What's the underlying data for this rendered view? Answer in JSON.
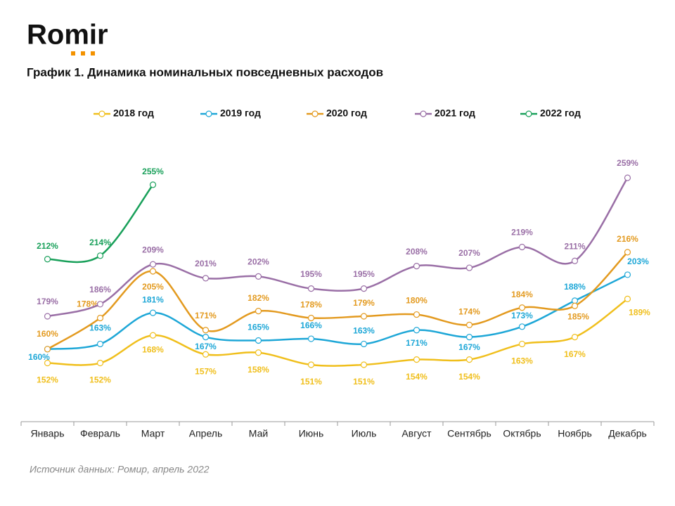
{
  "logo": "Romir",
  "chart_data": {
    "type": "line",
    "title": "График 1. Динамика номинальных повседневных расходов",
    "source": "Источник данных: Ромир, апрель 2022",
    "categories": [
      "Январь",
      "Февраль",
      "Март",
      "Апрель",
      "Май",
      "Июнь",
      "Июль",
      "Август",
      "Сентябрь",
      "Октябрь",
      "Ноябрь",
      "Декабрь"
    ],
    "series": [
      {
        "name": "2018 год",
        "color": "#f0bf1c",
        "values": [
          152,
          152,
          168,
          157,
          158,
          151,
          151,
          154,
          154,
          163,
          167,
          189
        ],
        "value_labels": [
          "152%",
          "152%",
          "168%",
          "157%",
          "158%",
          "151%",
          "151%",
          "154%",
          "154%",
          "163%",
          "167%",
          "189%"
        ]
      },
      {
        "name": "2019 год",
        "color": "#1ea7d7",
        "values": [
          160,
          163,
          181,
          167,
          165,
          166,
          163,
          171,
          167,
          173,
          188,
          203
        ],
        "value_labels": [
          "160%",
          "163%",
          "181%",
          "167%",
          "165%",
          "166%",
          "163%",
          "171%",
          "167%",
          "173%",
          "188%",
          "203%"
        ]
      },
      {
        "name": "2020 год",
        "color": "#e39a1f",
        "values": [
          160,
          178,
          205,
          171,
          182,
          178,
          179,
          180,
          174,
          184,
          185,
          216
        ],
        "value_labels": [
          "160%",
          "178%",
          "205%",
          "171%",
          "182%",
          "178%",
          "179%",
          "180%",
          "174%",
          "184%",
          "185%",
          "216%"
        ]
      },
      {
        "name": "2021 год",
        "color": "#9a6fa6",
        "values": [
          179,
          186,
          209,
          201,
          202,
          195,
          195,
          208,
          207,
          219,
          211,
          259
        ],
        "value_labels": [
          "179%",
          "186%",
          "209%",
          "201%",
          "202%",
          "195%",
          "195%",
          "208%",
          "207%",
          "219%",
          "211%",
          "259%"
        ]
      },
      {
        "name": "2022 год",
        "color": "#19a05a",
        "values": [
          212,
          214,
          255,
          null,
          null,
          null,
          null,
          null,
          null,
          null,
          null,
          null
        ],
        "value_labels": [
          "212%",
          "214%",
          "255%",
          null,
          null,
          null,
          null,
          null,
          null,
          null,
          null,
          null
        ]
      }
    ]
  }
}
